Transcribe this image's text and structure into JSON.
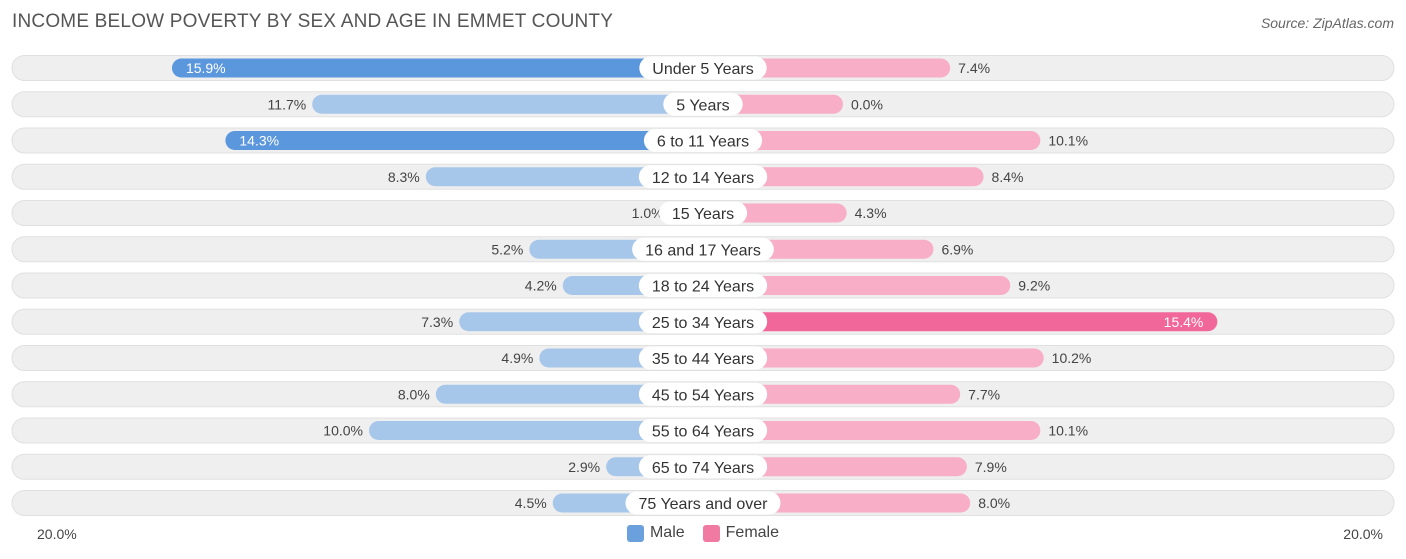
{
  "title": "INCOME BELOW POVERTY BY SEX AND AGE IN EMMET COUNTY",
  "source": "Source: ZipAtlas.com",
  "axis": {
    "left_label": "20.0%",
    "right_label": "20.0%"
  },
  "legend": {
    "male_label": "Male",
    "female_label": "Female"
  },
  "colors": {
    "male_strong": "#5b97dc",
    "male_light": "#a7c7ea",
    "female_strong": "#f2679a",
    "female_light": "#f7aec6",
    "row_bg": "#efefef",
    "row_border": "#e0e0e0"
  },
  "chart_data": {
    "type": "bar",
    "orientation": "horizontal-diverging",
    "title": "INCOME BELOW POVERTY BY SEX AND AGE IN EMMET COUNTY",
    "xlim": [
      -20,
      20
    ],
    "unit": "%",
    "categories": [
      "Under 5 Years",
      "5 Years",
      "6 to 11 Years",
      "12 to 14 Years",
      "15 Years",
      "16 and 17 Years",
      "18 to 24 Years",
      "25 to 34 Years",
      "35 to 44 Years",
      "45 to 54 Years",
      "55 to 64 Years",
      "65 to 74 Years",
      "75 Years and over"
    ],
    "series": [
      {
        "name": "Male",
        "values": [
          15.9,
          11.7,
          14.3,
          8.3,
          1.0,
          5.2,
          4.2,
          7.3,
          4.9,
          8.0,
          10.0,
          2.9,
          4.5
        ],
        "labels": [
          "15.9%",
          "11.7%",
          "14.3%",
          "8.3%",
          "1.0%",
          "5.2%",
          "4.2%",
          "7.3%",
          "4.9%",
          "8.0%",
          "10.0%",
          "2.9%",
          "4.5%"
        ]
      },
      {
        "name": "Female",
        "values": [
          7.4,
          0.0,
          10.1,
          8.4,
          4.3,
          6.9,
          9.2,
          15.4,
          10.2,
          7.7,
          10.1,
          7.9,
          8.0
        ],
        "labels": [
          "7.4%",
          "0.0%",
          "10.1%",
          "8.4%",
          "4.3%",
          "6.9%",
          "9.2%",
          "15.4%",
          "10.2%",
          "7.7%",
          "10.1%",
          "7.9%",
          "8.0%"
        ]
      }
    ]
  }
}
